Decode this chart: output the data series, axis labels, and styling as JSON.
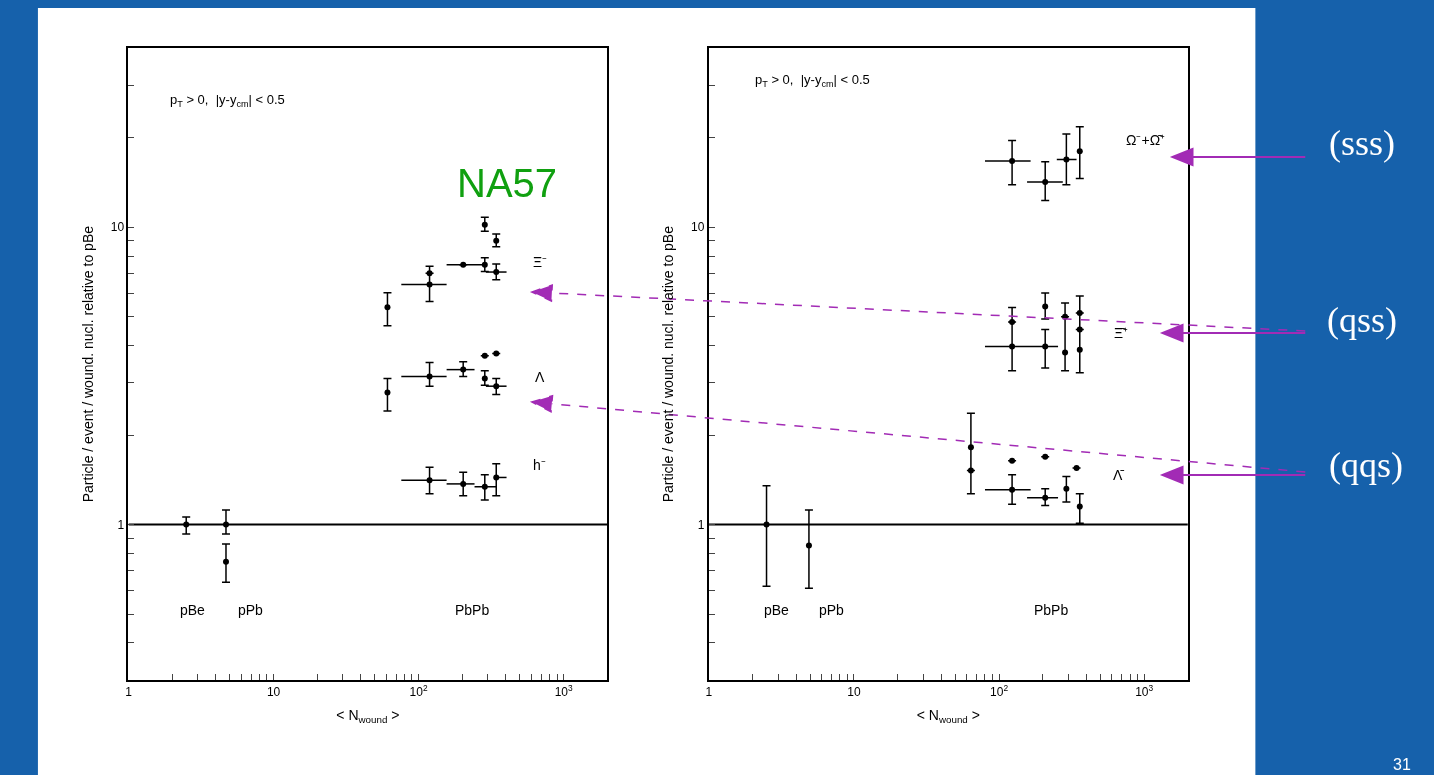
{
  "chart_data": [
    {
      "type": "scatter",
      "log": "xy",
      "marker": "circle",
      "xlabel": "< N$_{wound}$ >",
      "ylabel": "Particle / event / wound. nucl. relative to pBe",
      "xlim": [
        1,
        2000
      ],
      "ylim": [
        0.3,
        40
      ],
      "xticks": [
        1,
        {
          "value": 2,
          "label": null
        },
        {
          "value": 3,
          "label": null
        },
        {
          "value": 4,
          "label": null
        },
        {
          "value": 5,
          "label": null
        },
        {
          "value": 6,
          "label": null
        },
        {
          "value": 7,
          "label": null
        },
        {
          "value": 8,
          "label": null
        },
        {
          "value": 9,
          "label": null
        },
        10,
        {
          "value": 20,
          "label": null
        },
        {
          "value": 30,
          "label": null
        },
        {
          "value": 40,
          "label": null
        },
        {
          "value": 50,
          "label": null
        },
        {
          "value": 60,
          "label": null
        },
        {
          "value": 70,
          "label": null
        },
        {
          "value": 80,
          "label": null
        },
        {
          "value": 90,
          "label": null
        },
        {
          "value": 100,
          "label": "10$^{2}$"
        },
        {
          "value": 200,
          "label": null
        },
        {
          "value": 300,
          "label": null
        },
        {
          "value": 400,
          "label": null
        },
        {
          "value": 500,
          "label": null
        },
        {
          "value": 600,
          "label": null
        },
        {
          "value": 700,
          "label": null
        },
        {
          "value": 800,
          "label": null
        },
        {
          "value": 900,
          "label": null
        },
        {
          "value": 1000,
          "label": "10$^{3}$"
        }
      ],
      "yticks": [
        {
          "value": 0.4,
          "label": null
        },
        {
          "value": 0.5,
          "label": null
        },
        {
          "value": 0.6,
          "label": null
        },
        {
          "value": 0.7,
          "label": null
        },
        {
          "value": 0.8,
          "label": null
        },
        {
          "value": 0.9,
          "label": null
        },
        1,
        {
          "value": 2,
          "label": null
        },
        {
          "value": 3,
          "label": null
        },
        {
          "value": 4,
          "label": null
        },
        {
          "value": 5,
          "label": null
        },
        {
          "value": 6,
          "label": null
        },
        {
          "value": 7,
          "label": null
        },
        {
          "value": 8,
          "label": null
        },
        {
          "value": 9,
          "label": null
        },
        10,
        {
          "value": 20,
          "label": null
        },
        {
          "value": 30,
          "label": null
        }
      ],
      "ref_lines": [
        {
          "axis": "y",
          "value": 1,
          "color": "#000000"
        }
      ],
      "series": [
        {
          "color": "#000000",
          "x": [
            2.5,
            4.7,
            4.7
          ],
          "values": [
            1.0,
            1.0,
            0.75
          ],
          "errors": [
            [
              0.93,
              1.06
            ],
            [
              0.93,
              1.12
            ],
            [
              0.64,
              0.86
            ]
          ]
        },
        {
          "color": "#000000",
          "x": [
            61,
            119,
            119,
            203,
            286,
            343,
            286,
            343
          ],
          "values": [
            5.38,
            6.42,
            7.0,
            7.48,
            7.48,
            7.07,
            10.2,
            9.0
          ],
          "errors": [
            [
              4.66,
              6.02
            ],
            [
              5.63,
              7.4
            ],
            null,
            null,
            [
              7.1,
              7.9
            ],
            [
              6.66,
              7.53
            ],
            [
              9.7,
              10.8
            ],
            [
              8.6,
              9.5
            ]
          ],
          "xerrors": [
            null,
            [
              76,
              156
            ],
            null,
            [
              156,
              276
            ],
            null,
            [
              291,
              404
            ],
            null,
            null
          ]
        },
        {
          "color": "#000000",
          "x": [
            61,
            119,
            203,
            286,
            343,
            286,
            343
          ],
          "values": [
            2.78,
            3.15,
            3.32,
            3.1,
            2.92,
            3.7,
            3.76
          ],
          "errors": [
            [
              2.41,
              3.1
            ],
            [
              2.92,
              3.51
            ],
            [
              3.15,
              3.53
            ],
            [
              2.94,
              3.29
            ],
            [
              2.74,
              3.1
            ],
            null,
            null
          ],
          "xerrors": [
            null,
            [
              76,
              156
            ],
            [
              156,
              243
            ],
            null,
            [
              291,
              404
            ],
            null,
            null
          ]
        },
        {
          "color": "#000000",
          "x": [
            119,
            203,
            286,
            343
          ],
          "values": [
            1.41,
            1.37,
            1.34,
            1.44
          ],
          "errors": [
            [
              1.27,
              1.56
            ],
            [
              1.25,
              1.5
            ],
            [
              1.21,
              1.47
            ],
            [
              1.25,
              1.6
            ]
          ],
          "xerrors": [
            [
              76,
              156
            ],
            [
              156,
              243
            ],
            [
              243,
              343
            ],
            [
              343,
              404
            ]
          ]
        }
      ],
      "annotations": [
        "p$_{T}$ > 0,  |y-y$_{cm}$| < 0.5",
        "NA57",
        "Ξ⁻",
        "Λ",
        "h⁻",
        "pBe",
        "pPb",
        "PbPb"
      ]
    },
    {
      "type": "scatter",
      "log": "xy",
      "marker": "circle",
      "xlabel": "< N$_{wound}$ >",
      "ylabel": "Particle / event / wound. nucl. relative to pBe",
      "xlim": [
        1,
        2000
      ],
      "ylim": [
        0.3,
        40
      ],
      "xticks": [
        1,
        {
          "value": 2,
          "label": null
        },
        {
          "value": 3,
          "label": null
        },
        {
          "value": 4,
          "label": null
        },
        {
          "value": 5,
          "label": null
        },
        {
          "value": 6,
          "label": null
        },
        {
          "value": 7,
          "label": null
        },
        {
          "value": 8,
          "label": null
        },
        {
          "value": 9,
          "label": null
        },
        10,
        {
          "value": 20,
          "label": null
        },
        {
          "value": 30,
          "label": null
        },
        {
          "value": 40,
          "label": null
        },
        {
          "value": 50,
          "label": null
        },
        {
          "value": 60,
          "label": null
        },
        {
          "value": 70,
          "label": null
        },
        {
          "value": 80,
          "label": null
        },
        {
          "value": 90,
          "label": null
        },
        {
          "value": 100,
          "label": "10$^{2}$"
        },
        {
          "value": 200,
          "label": null
        },
        {
          "value": 300,
          "label": null
        },
        {
          "value": 400,
          "label": null
        },
        {
          "value": 500,
          "label": null
        },
        {
          "value": 600,
          "label": null
        },
        {
          "value": 700,
          "label": null
        },
        {
          "value": 800,
          "label": null
        },
        {
          "value": 900,
          "label": null
        },
        {
          "value": 1000,
          "label": "10$^{3}$"
        }
      ],
      "yticks": [
        {
          "value": 0.4,
          "label": null
        },
        {
          "value": 0.5,
          "label": null
        },
        {
          "value": 0.6,
          "label": null
        },
        {
          "value": 0.7,
          "label": null
        },
        {
          "value": 0.8,
          "label": null
        },
        {
          "value": 0.9,
          "label": null
        },
        1,
        {
          "value": 2,
          "label": null
        },
        {
          "value": 3,
          "label": null
        },
        {
          "value": 4,
          "label": null
        },
        {
          "value": 5,
          "label": null
        },
        {
          "value": 6,
          "label": null
        },
        {
          "value": 7,
          "label": null
        },
        {
          "value": 8,
          "label": null
        },
        {
          "value": 9,
          "label": null
        },
        10,
        {
          "value": 20,
          "label": null
        },
        {
          "value": 30,
          "label": null
        }
      ],
      "ref_lines": [
        {
          "axis": "y",
          "value": 1,
          "color": "#000000"
        }
      ],
      "series": [
        {
          "color": "#000000",
          "x": [
            2.5,
            4.9
          ],
          "values": [
            1.0,
            0.85
          ],
          "errors": [
            [
              0.62,
              1.35
            ],
            [
              0.61,
              1.12
            ]
          ]
        },
        {
          "color": "#000000",
          "x": [
            123,
            208,
            291,
            360
          ],
          "values": [
            16.7,
            14.2,
            16.9,
            18.0
          ],
          "errors": [
            [
              13.9,
              19.6
            ],
            [
              12.3,
              16.6
            ],
            [
              13.9,
              20.6
            ],
            [
              14.6,
              21.8
            ]
          ],
          "xerrors": [
            [
              80,
              165
            ],
            [
              156,
              275
            ],
            [
              250,
              342
            ],
            null
          ]
        },
        {
          "color": "#000000",
          "x": [
            123,
            123,
            208,
            208,
            285,
            285,
            360,
            360,
            360
          ],
          "values": [
            3.97,
            4.8,
            3.97,
            5.41,
            3.79,
            5.0,
            3.87,
            5.15,
            4.53
          ],
          "errors": [
            [
              3.29,
              5.37
            ],
            null,
            [
              3.36,
              4.53
            ],
            [
              4.91,
              6.01
            ],
            [
              3.29,
              5.56
            ],
            null,
            [
              3.24,
              5.87
            ],
            null,
            null
          ],
          "xerrors": [
            [
              80,
              255
            ],
            null,
            null,
            null,
            null,
            null,
            null,
            null,
            null
          ]
        },
        {
          "color": "#000000",
          "x": [
            64,
            64,
            123,
            123,
            208,
            208,
            291,
            360,
            342
          ],
          "values": [
            1.82,
            1.52,
            1.31,
            1.64,
            1.23,
            1.69,
            1.32,
            1.15,
            1.55
          ],
          "errors": [
            [
              1.27,
              2.37
            ],
            null,
            [
              1.17,
              1.47
            ],
            null,
            [
              1.16,
              1.32
            ],
            null,
            [
              1.19,
              1.45
            ],
            [
              1.01,
              1.27
            ],
            null
          ],
          "xerrors": [
            null,
            null,
            [
              80,
              165
            ],
            null,
            [
              156,
              255
            ],
            null,
            null,
            null,
            null
          ]
        }
      ],
      "annotations": [
        "p$_{T}$ > 0,  |y-y$_{cm}$| < 0.5",
        "(sss)",
        "(qss)",
        "(qqs)",
        "31",
        "Ω⁻+Ω̄⁺",
        "Ξ̄⁺",
        "Λ̄",
        "pBe",
        "pPb",
        "PbPb"
      ]
    }
  ]
}
